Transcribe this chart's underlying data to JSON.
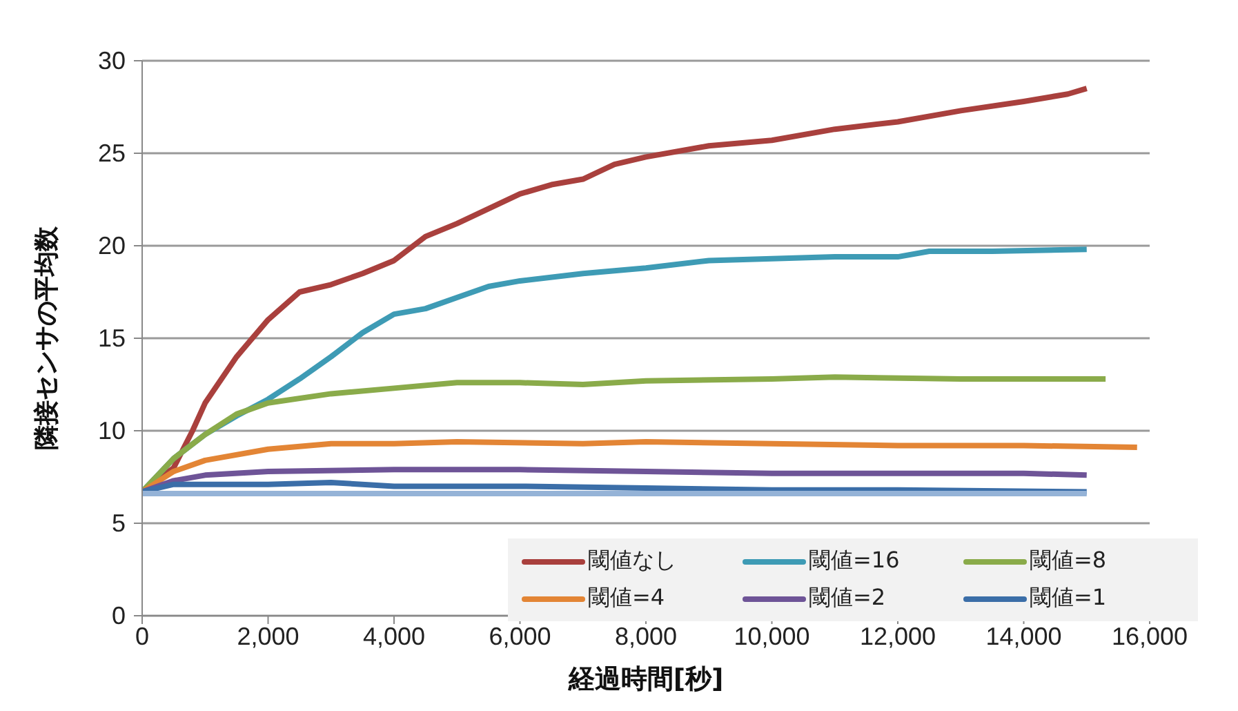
{
  "chart_data": {
    "type": "line",
    "xlabel": "経過時間[秒]",
    "ylabel": "隣接センサの平均数",
    "xlim": [
      0,
      16000
    ],
    "xticks": [
      {
        "value": 0,
        "label": "0"
      },
      {
        "value": 2000,
        "label": "2,000"
      },
      {
        "value": 4000,
        "label": "4,000"
      },
      {
        "value": 6000,
        "label": "6,000"
      },
      {
        "value": 8000,
        "label": "8,000"
      },
      {
        "value": 10000,
        "label": "10,000"
      },
      {
        "value": 12000,
        "label": "12,000"
      },
      {
        "value": 14000,
        "label": "14,000"
      },
      {
        "value": 16000,
        "label": "16,000"
      }
    ],
    "ylim": [
      0,
      30
    ],
    "yticks": [
      0,
      5,
      10,
      15,
      20,
      25,
      30
    ],
    "grid": "y",
    "legend": "bottom right",
    "marker": "none",
    "line_style": "solid",
    "series": [
      {
        "name": "閾値なし",
        "color": "#a9403d",
        "x": [
          0,
          500,
          800,
          1000,
          1500,
          2000,
          2500,
          3000,
          3500,
          4000,
          4500,
          5000,
          5500,
          6000,
          6500,
          7000,
          7500,
          8000,
          9000,
          10000,
          11000,
          12000,
          13000,
          14000,
          14700,
          15000
        ],
        "values": [
          6.7,
          8,
          10,
          11.5,
          14,
          16,
          17.5,
          17.9,
          18.5,
          19.2,
          20.5,
          21.2,
          22,
          22.8,
          23.3,
          23.6,
          24.4,
          24.8,
          25.4,
          25.7,
          26.3,
          26.7,
          27.3,
          27.8,
          28.2,
          28.5
        ]
      },
      {
        "name": "閾値=16",
        "color": "#3e9bb5",
        "x": [
          0,
          500,
          1000,
          1500,
          2000,
          2500,
          3000,
          3500,
          4000,
          4500,
          5000,
          5500,
          6000,
          7000,
          8000,
          9000,
          10000,
          11000,
          12000,
          12500,
          13500,
          15000
        ],
        "values": [
          6.7,
          8.5,
          9.8,
          10.8,
          11.7,
          12.8,
          14,
          15.3,
          16.3,
          16.6,
          17.2,
          17.8,
          18.1,
          18.5,
          18.8,
          19.2,
          19.3,
          19.4,
          19.4,
          19.7,
          19.7,
          19.8
        ]
      },
      {
        "name": "閾値=8",
        "color": "#8aab4a",
        "x": [
          0,
          500,
          1000,
          1500,
          2000,
          3000,
          4000,
          5000,
          6000,
          7000,
          8000,
          10000,
          11000,
          13000,
          14000,
          15300
        ],
        "values": [
          6.7,
          8.5,
          9.8,
          10.9,
          11.5,
          12.0,
          12.3,
          12.6,
          12.6,
          12.5,
          12.7,
          12.8,
          12.9,
          12.8,
          12.8,
          12.8
        ]
      },
      {
        "name": "閾値=4",
        "color": "#e38535",
        "x": [
          0,
          500,
          1000,
          2000,
          3000,
          4000,
          5000,
          7000,
          8000,
          10000,
          12000,
          14000,
          15800
        ],
        "values": [
          6.7,
          7.8,
          8.4,
          9,
          9.3,
          9.3,
          9.4,
          9.3,
          9.4,
          9.3,
          9.2,
          9.2,
          9.1
        ]
      },
      {
        "name": "閾値=2",
        "color": "#6e5497",
        "x": [
          0,
          500,
          1000,
          2000,
          4000,
          6000,
          8000,
          10000,
          12000,
          14000,
          15000
        ],
        "values": [
          6.7,
          7.3,
          7.6,
          7.8,
          7.9,
          7.9,
          7.8,
          7.7,
          7.7,
          7.7,
          7.6
        ]
      },
      {
        "name": "閾値=1",
        "color": "#3b6ea8",
        "x": [
          0,
          500,
          1000,
          2000,
          3000,
          4000,
          6000,
          8000,
          10000,
          12000,
          15000
        ],
        "values": [
          6.7,
          7.1,
          7.1,
          7.1,
          7.2,
          7.0,
          7.0,
          6.9,
          6.8,
          6.8,
          6.7
        ]
      },
      {
        "color": "#95b3d7",
        "x": [
          0,
          15000
        ],
        "values": [
          6.6,
          6.6
        ]
      }
    ]
  }
}
